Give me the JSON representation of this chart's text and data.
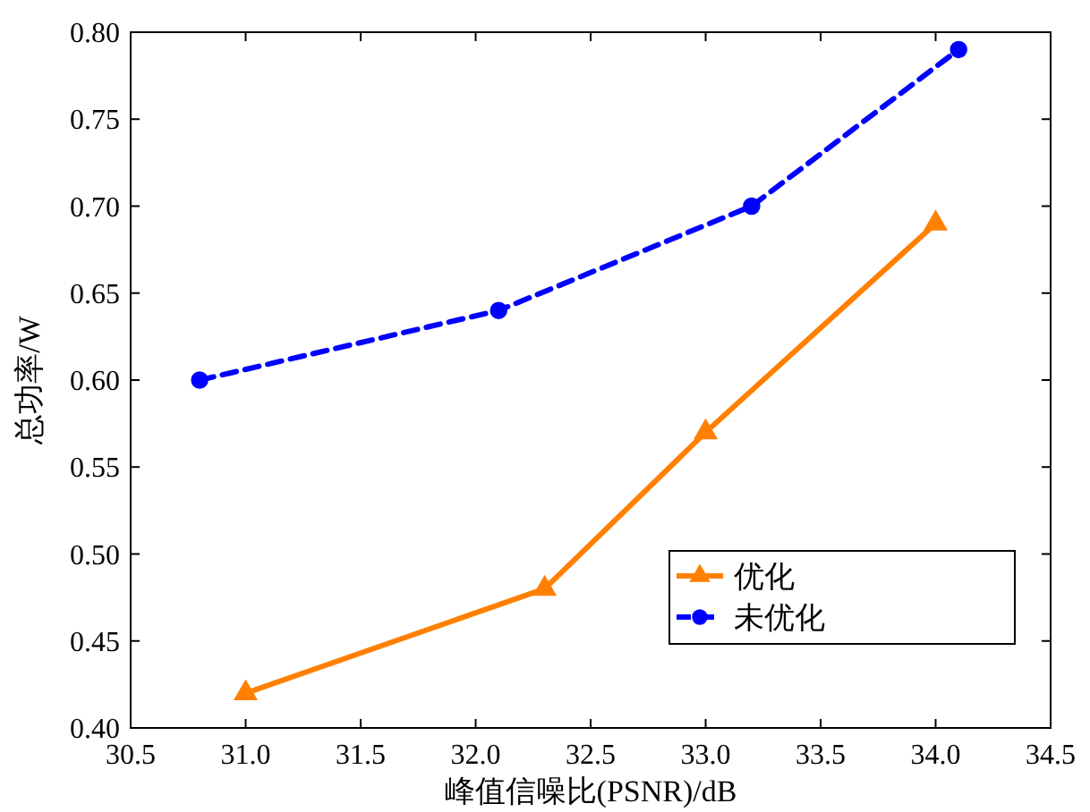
{
  "chart_data": {
    "type": "line",
    "xlabel": "峰值信噪比(PSNR)/dB",
    "ylabel": "总功率/W",
    "xlim": [
      30.5,
      34.5
    ],
    "ylim": [
      0.4,
      0.8
    ],
    "xticks": [
      {
        "value": 30.5,
        "label": "30.5"
      },
      {
        "value": 31,
        "label": "31.0"
      },
      {
        "value": 31.5,
        "label": "31.5"
      },
      {
        "value": 32,
        "label": "32.0"
      },
      {
        "value": 32.5,
        "label": "32.5"
      },
      {
        "value": 33,
        "label": "33.0"
      },
      {
        "value": 33.5,
        "label": "33.5"
      },
      {
        "value": 34,
        "label": "34.0"
      },
      {
        "value": 34.5,
        "label": "34.5"
      }
    ],
    "yticks": [
      {
        "value": 0.4,
        "label": "0.40"
      },
      {
        "value": 0.45,
        "label": "0.45"
      },
      {
        "value": 0.5,
        "label": "0.50"
      },
      {
        "value": 0.55,
        "label": "0.55"
      },
      {
        "value": 0.6,
        "label": "0.60"
      },
      {
        "value": 0.65,
        "label": "0.65"
      },
      {
        "value": 0.7,
        "label": "0.70"
      },
      {
        "value": 0.75,
        "label": "0.75"
      },
      {
        "value": 0.8,
        "label": "0.80"
      }
    ],
    "legend": "bottom right",
    "series": [
      {
        "name": "优化",
        "color": "#ff8000",
        "x": [
          31.0,
          32.3,
          33.0,
          34.0
        ],
        "values": [
          0.42,
          0.48,
          0.57,
          0.69
        ],
        "marker": "triangle",
        "line_style": "solid"
      },
      {
        "name": "未优化",
        "color": "#0000ff",
        "x": [
          30.8,
          32.1,
          33.2,
          34.1
        ],
        "values": [
          0.6,
          0.64,
          0.7,
          0.79
        ],
        "marker": "circle",
        "line_style": "dashed"
      }
    ]
  }
}
